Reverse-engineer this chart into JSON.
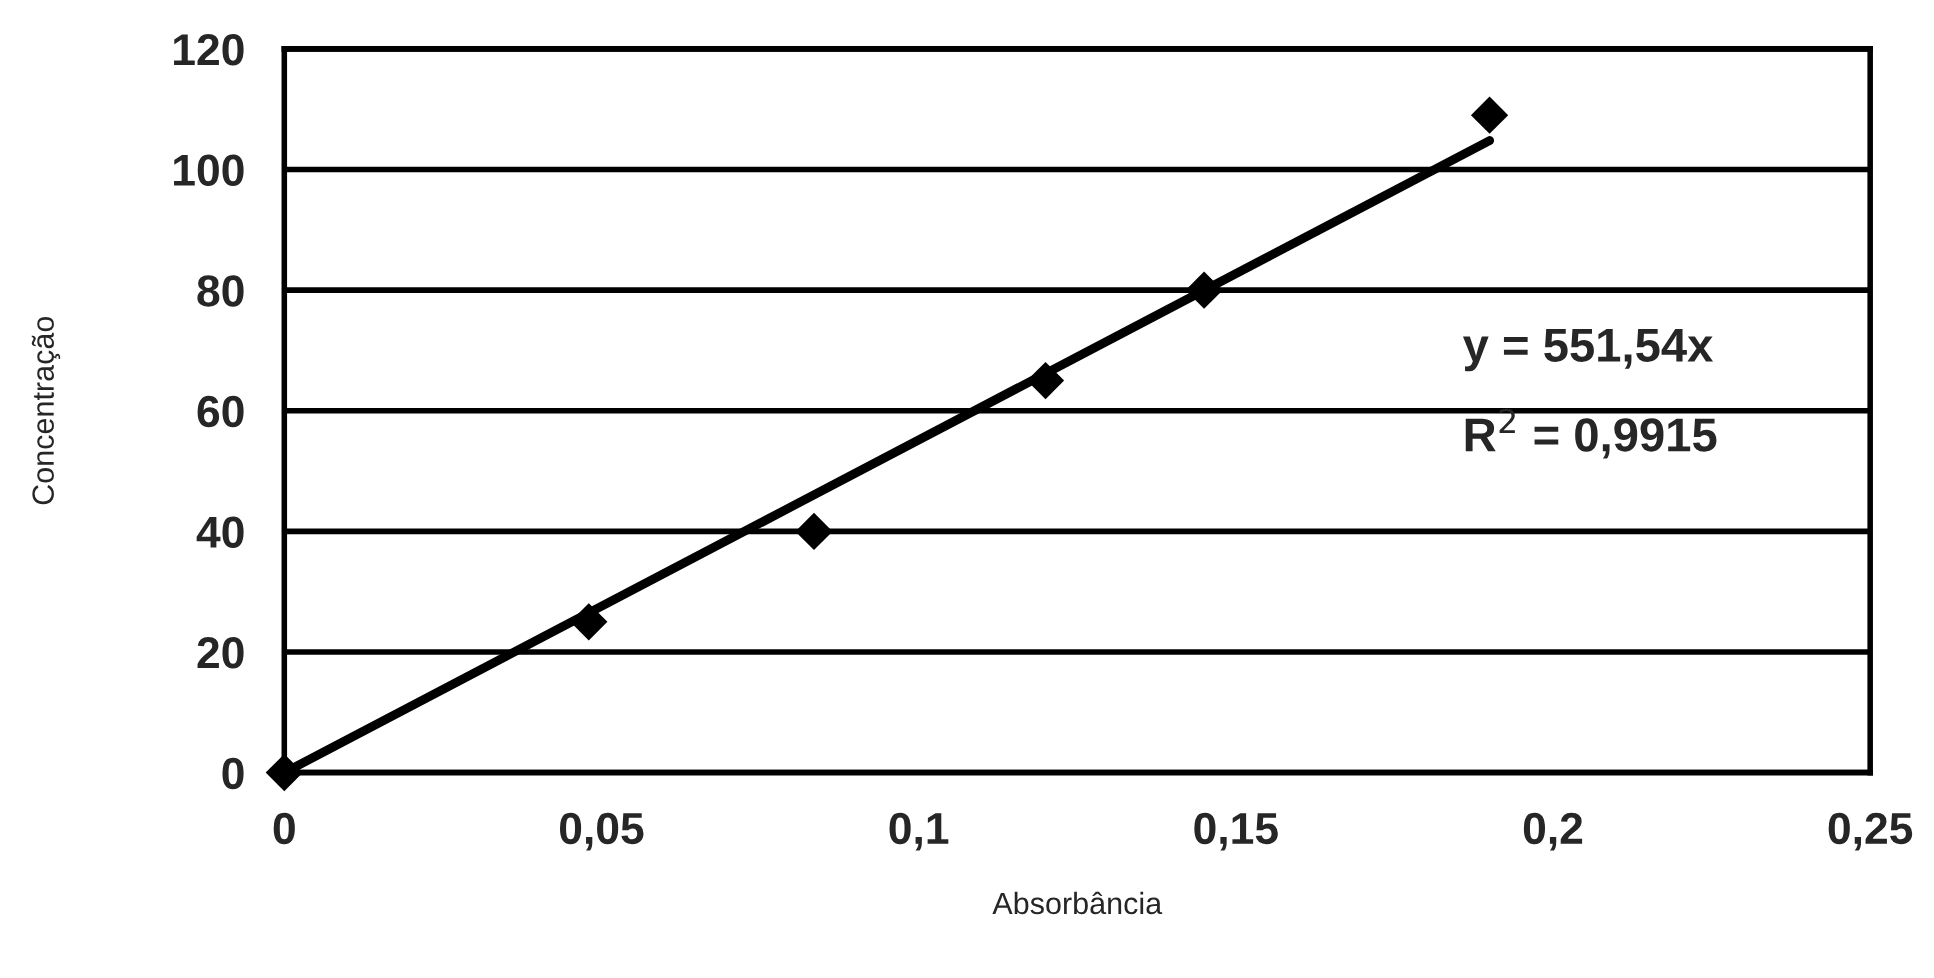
{
  "chart_data": {
    "type": "scatter",
    "xlabel": "Absorbância",
    "ylabel": "Concentração",
    "xlim": [
      0,
      0.25
    ],
    "ylim": [
      0,
      120
    ],
    "xticks": [
      0,
      {
        "value": 0.05,
        "label": "0,05"
      },
      {
        "value": 0.1,
        "label": "0,1"
      },
      {
        "value": 0.15,
        "label": "0,15"
      },
      {
        "value": 0.2,
        "label": "0,2"
      },
      {
        "value": 0.25,
        "label": "0,25"
      }
    ],
    "yticks": [
      0,
      20,
      40,
      60,
      80,
      100,
      120
    ],
    "grid": "y",
    "legend": false,
    "series": [
      {
        "color": "#000000",
        "marker": "diamond",
        "x": [
          0,
          0.048,
          0.0835,
          0.12,
          0.145,
          0.19
        ],
        "values": [
          0,
          25,
          40,
          65,
          80,
          109
        ]
      },
      {
        "type": "line",
        "color": "#000000",
        "marker": "none",
        "line_style": "solid",
        "x": [
          0,
          0.19
        ],
        "values": [
          0,
          104.8
        ]
      }
    ],
    "annotations": [
      "y = 551,54x",
      "R$^{2}$ = 0,9915"
    ]
  }
}
